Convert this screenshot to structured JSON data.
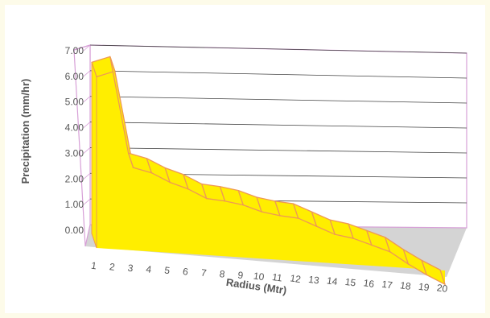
{
  "chart_data": {
    "type": "area",
    "title": "",
    "xlabel": "Radius (Mtr)",
    "ylabel": "Precipitation  (mm/hr)",
    "x": [
      1,
      2,
      3,
      4,
      5,
      6,
      7,
      8,
      9,
      10,
      11,
      12,
      13,
      14,
      15,
      16,
      17,
      18,
      19,
      20
    ],
    "series": [
      {
        "values": [
          6.2,
          6.45,
          3.0,
          2.85,
          2.55,
          2.35,
          2.05,
          2.0,
          1.9,
          1.7,
          1.6,
          1.55,
          1.3,
          1.05,
          0.95,
          0.75,
          0.55,
          0.15,
          -0.2,
          -0.5
        ]
      }
    ],
    "ylim": [
      0,
      7
    ],
    "y_ticks": [
      "0.00",
      "1.00",
      "2.00",
      "3.00",
      "4.00",
      "5.00",
      "6.00",
      "7.00"
    ],
    "x_ticks": [
      "1",
      "2",
      "3",
      "4",
      "5",
      "6",
      "7",
      "8",
      "9",
      "10",
      "11",
      "12",
      "13",
      "14",
      "15",
      "16",
      "17",
      "18",
      "19",
      "20"
    ],
    "style": "3d",
    "grid": true,
    "colors": {
      "fill": "#ffee00",
      "edge": "#ee9955",
      "grid": "#444444",
      "box": "#d7a0d7",
      "floor": "#d4d4d4",
      "text": "#555555"
    }
  }
}
